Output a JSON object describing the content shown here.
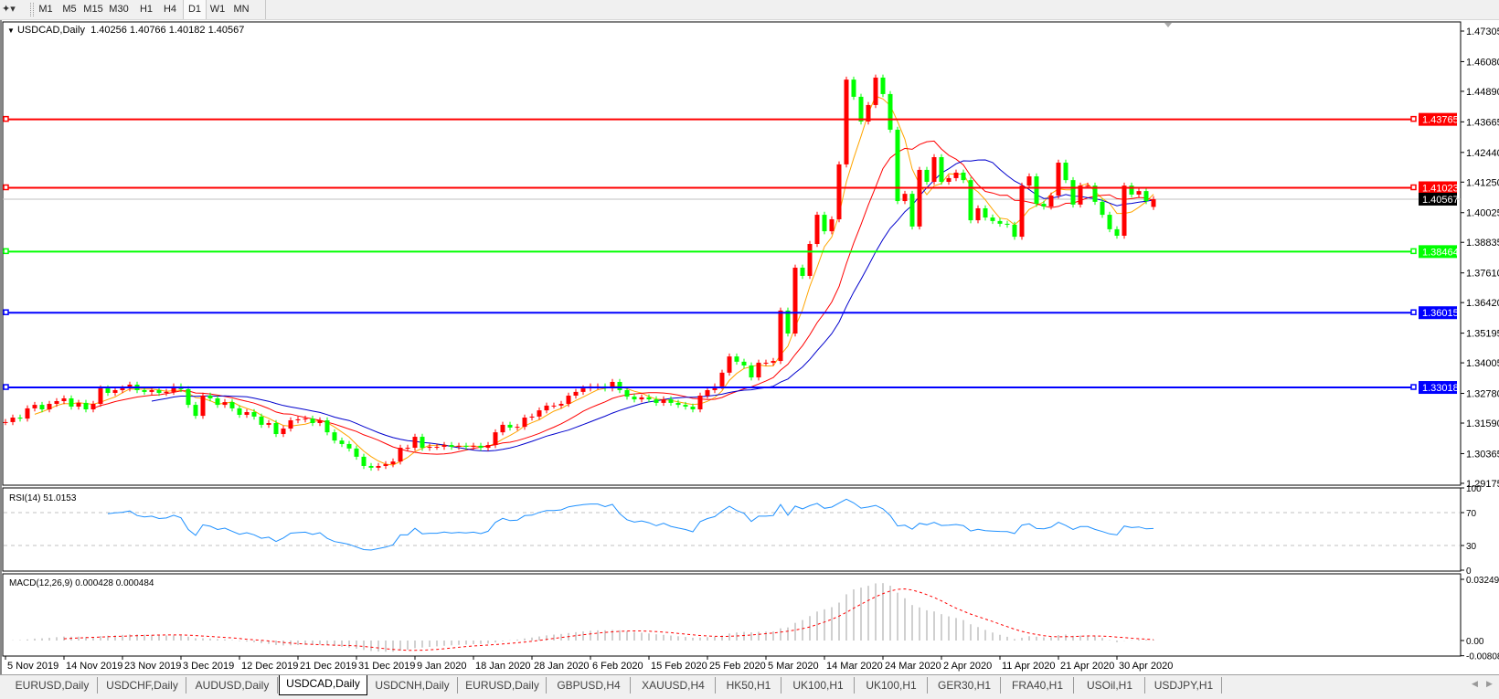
{
  "toolbar": {
    "timeframes": [
      "M1",
      "M5",
      "M15",
      "M30",
      "H1",
      "H4",
      "D1",
      "W1",
      "MN"
    ],
    "active_timeframe": "D1",
    "tool_icon": "line-tools-icon"
  },
  "chart_header": {
    "symbol": "USDCAD,Daily",
    "open": "1.40256",
    "high": "1.40766",
    "low": "1.40182",
    "close": "1.40567"
  },
  "chart_data": [
    {
      "type": "candlestick",
      "title": "USDCAD,Daily",
      "up_color": "#ff0000",
      "down_color": "#00ff00",
      "ylim": [
        1.29175,
        1.47305
      ],
      "price_ticks": [
        "1.47305",
        "1.46080",
        "1.44890",
        "1.43665",
        "1.42440",
        "1.41250",
        "1.40025",
        "1.38835",
        "1.37610",
        "1.36420",
        "1.35195",
        "1.34005",
        "1.32780",
        "1.31590",
        "1.30365",
        "1.29175"
      ],
      "date_labels": [
        "5 Nov 2019",
        "14 Nov 2019",
        "23 Nov 2019",
        "3 Dec 2019",
        "12 Dec 2019",
        "21 Dec 2019",
        "31 Dec 2019",
        "9 Jan 2020",
        "18 Jan 2020",
        "28 Jan 2020",
        "6 Feb 2020",
        "15 Feb 2020",
        "25 Feb 2020",
        "5 Mar 2020",
        "14 Mar 2020",
        "24 Mar 2020",
        "2 Apr 2020",
        "11 Apr 2020",
        "21 Apr 2020",
        "30 Apr 2020"
      ],
      "bars_per_date_label": 8,
      "last_open": 1.40256,
      "closes": [
        1.3163,
        1.3181,
        1.3177,
        1.3218,
        1.3232,
        1.3214,
        1.3236,
        1.3247,
        1.3258,
        1.3225,
        1.324,
        1.3214,
        1.3236,
        1.3298,
        1.328,
        1.3291,
        1.3298,
        1.3313,
        1.3291,
        1.3284,
        1.3291,
        1.328,
        1.3284,
        1.3306,
        1.3295,
        1.3232,
        1.3188,
        1.3269,
        1.3258,
        1.3232,
        1.3243,
        1.3218,
        1.3192,
        1.3203,
        1.3185,
        1.3152,
        1.3159,
        1.3115,
        1.3137,
        1.317,
        1.3174,
        1.3177,
        1.3159,
        1.317,
        1.3122,
        1.3089,
        1.3075,
        1.3057,
        1.3024,
        1.2987,
        1.298,
        1.2987,
        1.2994,
        1.3005,
        1.306,
        1.306,
        1.3104,
        1.306,
        1.3064,
        1.3064,
        1.3071,
        1.3064,
        1.3068,
        1.3064,
        1.3068,
        1.306,
        1.3071,
        1.3122,
        1.3152,
        1.3141,
        1.3144,
        1.3181,
        1.3185,
        1.321,
        1.3229,
        1.3229,
        1.3236,
        1.3269,
        1.3284,
        1.3298,
        1.3306,
        1.3306,
        1.3298,
        1.3324,
        1.3291,
        1.3265,
        1.3254,
        1.3262,
        1.3254,
        1.324,
        1.3254,
        1.324,
        1.3232,
        1.3225,
        1.3214,
        1.3269,
        1.3291,
        1.3306,
        1.3361,
        1.3426,
        1.3405,
        1.339,
        1.3342,
        1.3401,
        1.3401,
        1.3408,
        1.361,
        1.3518,
        1.3782,
        1.3749,
        1.3877,
        1.3994,
        1.3928,
        1.3976,
        1.4196,
        1.4536,
        1.4467,
        1.4368,
        1.4434,
        1.4544,
        1.4478,
        1.4335,
        1.4049,
        1.4078,
        1.3947,
        1.4174,
        1.4126,
        1.4225,
        1.4126,
        1.4141,
        1.4163,
        1.4133,
        1.3972,
        1.402,
        1.3983,
        1.3969,
        1.3958,
        1.3954,
        1.3906,
        1.4111,
        1.4148,
        1.4038,
        1.4027,
        1.4071,
        1.4203,
        1.4133,
        1.4035,
        1.4111,
        1.4111,
        1.4046,
        1.3994,
        1.3936,
        1.391,
        1.4111,
        1.4075,
        1.4089,
        1.4049,
        1.40567
      ],
      "moving_average_colors": [
        "#ffa500",
        "#ff0000",
        "#0000cd"
      ],
      "horizontal_levels": [
        {
          "price": "1.43765",
          "color": "#ff0000"
        },
        {
          "price": "1.41023",
          "color": "#ff0000"
        },
        {
          "price": "1.38464",
          "color": "#00ff00"
        },
        {
          "price": "1.36015",
          "color": "#0000ff"
        },
        {
          "price": "1.33018",
          "color": "#0000ff"
        }
      ],
      "current_price": {
        "price": "1.40567",
        "color": "#000000"
      },
      "grid": false
    },
    {
      "type": "line",
      "title": "RSI(14) 51.0153",
      "ylim": [
        0,
        100
      ],
      "levels": [
        70,
        30
      ],
      "axis_labels": [
        "100",
        "70",
        "30",
        "0"
      ],
      "color": "#1e90ff"
    },
    {
      "type": "bar",
      "title": "MACD(12,26,9) 0.000428 0.000484",
      "ylim": [
        -0.008086,
        0.032493
      ],
      "axis_labels": [
        "0.032493",
        "0.00",
        "-0.008086"
      ],
      "histogram_color": "#c0c0c0",
      "signal_color": "#ff0000"
    }
  ],
  "tabs": [
    {
      "label": "EURUSD,Daily"
    },
    {
      "label": "USDCHF,Daily"
    },
    {
      "label": "AUDUSD,Daily"
    },
    {
      "label": "USDCAD,Daily",
      "active": true
    },
    {
      "label": "USDCNH,Daily"
    },
    {
      "label": "EURUSD,Daily"
    },
    {
      "label": "GBPUSD,H4"
    },
    {
      "label": "XAUUSD,H4"
    },
    {
      "label": "HK50,H1"
    },
    {
      "label": "UK100,H1"
    },
    {
      "label": "UK100,H1"
    },
    {
      "label": "GER30,H1"
    },
    {
      "label": "FRA40,H1"
    },
    {
      "label": "USOil,H1"
    },
    {
      "label": "USDJPY,H1"
    }
  ]
}
